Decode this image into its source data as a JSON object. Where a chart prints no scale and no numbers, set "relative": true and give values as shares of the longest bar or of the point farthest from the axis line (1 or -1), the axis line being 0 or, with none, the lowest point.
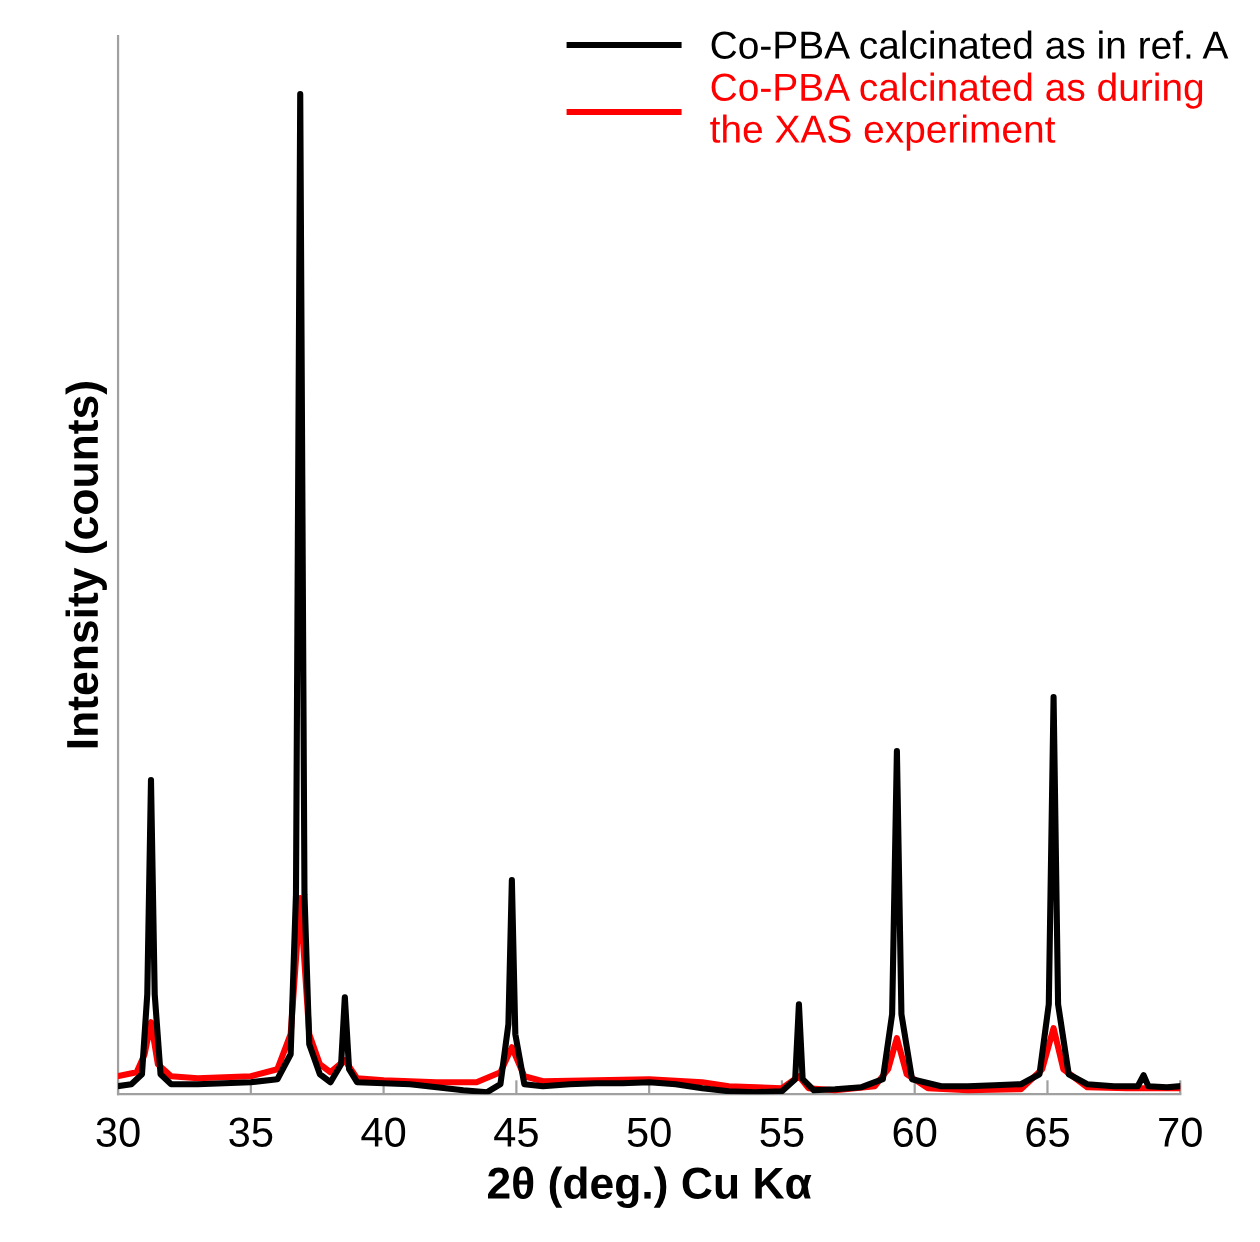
{
  "chart_data": {
    "type": "line",
    "relative": true,
    "xlabel": "2θ (deg.) Cu Kα",
    "ylabel": "Intensity (counts)",
    "xlim": [
      30,
      70
    ],
    "xticks": [
      30,
      35,
      40,
      45,
      50,
      55,
      60,
      65,
      70
    ],
    "legend": "top right",
    "grid": false,
    "marker": "none",
    "line_style": "solid",
    "series": [
      {
        "name": "Co-PBA calcinated as in ref. A",
        "color": "#000000",
        "x": [
          30,
          30.5,
          30.9,
          31.1,
          31.24,
          31.38,
          31.6,
          32,
          33,
          34,
          35,
          36,
          36.5,
          36.7,
          36.86,
          37.02,
          37.2,
          37.6,
          38,
          38.4,
          38.54,
          38.7,
          39,
          40,
          41,
          42,
          43,
          43.9,
          44.4,
          44.7,
          44.83,
          44.96,
          45.3,
          46,
          47,
          48,
          49,
          50,
          51,
          52,
          53,
          54,
          55,
          55.5,
          55.64,
          55.78,
          56.2,
          57,
          58,
          58.8,
          59.15,
          59.33,
          59.5,
          59.9,
          61,
          62,
          63,
          64,
          64.7,
          65.05,
          65.23,
          65.4,
          65.8,
          66.5,
          67.5,
          68.4,
          68.62,
          68.8,
          69.5,
          70
        ],
        "values": [
          0.008,
          0.01,
          0.02,
          0.1,
          0.314,
          0.1,
          0.02,
          0.01,
          0.01,
          0.011,
          0.012,
          0.015,
          0.04,
          0.2,
          1.0,
          0.2,
          0.05,
          0.02,
          0.012,
          0.03,
          0.097,
          0.025,
          0.012,
          0.011,
          0.01,
          0.007,
          0.004,
          0.002,
          0.01,
          0.07,
          0.214,
          0.06,
          0.01,
          0.008,
          0.01,
          0.011,
          0.011,
          0.012,
          0.01,
          0.006,
          0.003,
          0.002,
          0.003,
          0.015,
          0.09,
          0.015,
          0.004,
          0.005,
          0.007,
          0.015,
          0.08,
          0.343,
          0.08,
          0.015,
          0.008,
          0.008,
          0.009,
          0.01,
          0.02,
          0.09,
          0.397,
          0.09,
          0.02,
          0.01,
          0.008,
          0.008,
          0.019,
          0.008,
          0.007,
          0.008
        ]
      },
      {
        "name": "Co-PBA calcinated as during\nthe XAS experiment",
        "color": "#ff0000",
        "x": [
          30,
          30.7,
          31,
          31.24,
          31.5,
          32,
          33,
          34,
          35,
          36,
          36.5,
          36.86,
          37.2,
          37.6,
          38,
          38.54,
          39,
          40,
          42,
          43.5,
          44.4,
          44.83,
          45.3,
          46,
          48,
          50,
          52,
          53,
          55,
          55.64,
          56,
          57,
          58.5,
          59,
          59.33,
          59.7,
          60.5,
          62,
          64,
          64.8,
          65.23,
          65.6,
          66.5,
          68,
          70
        ],
        "values": [
          0.018,
          0.022,
          0.04,
          0.072,
          0.03,
          0.018,
          0.016,
          0.017,
          0.018,
          0.025,
          0.06,
          0.196,
          0.06,
          0.03,
          0.022,
          0.034,
          0.016,
          0.014,
          0.012,
          0.012,
          0.022,
          0.047,
          0.018,
          0.013,
          0.014,
          0.015,
          0.012,
          0.008,
          0.006,
          0.018,
          0.006,
          0.004,
          0.008,
          0.025,
          0.056,
          0.02,
          0.006,
          0.004,
          0.005,
          0.025,
          0.066,
          0.025,
          0.007,
          0.006,
          0.006
        ]
      }
    ]
  }
}
